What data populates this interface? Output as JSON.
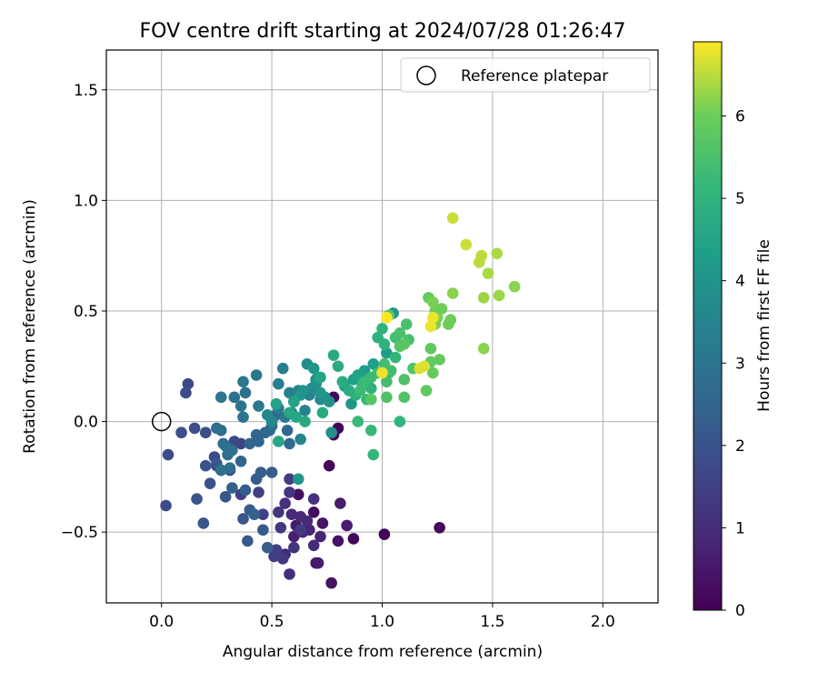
{
  "chart_data": {
    "type": "scatter",
    "title": "FOV centre drift starting at 2024/07/28 01:26:47",
    "xlabel": "Angular distance from reference (arcmin)",
    "ylabel": "Rotation from reference (arcmin)",
    "xlim": [
      -0.25,
      2.25
    ],
    "ylim": [
      -0.82,
      1.68
    ],
    "x_ticks": [
      0.0,
      0.5,
      1.0,
      1.5,
      2.0
    ],
    "x_tick_labels": [
      "0.0",
      "0.5",
      "1.0",
      "1.5",
      "2.0"
    ],
    "y_ticks": [
      -0.5,
      0.0,
      0.5,
      1.0,
      1.5
    ],
    "y_tick_labels": [
      "−0.5",
      "0.0",
      "0.5",
      "1.0",
      "1.5"
    ],
    "grid": true,
    "legend": {
      "position": "top-right",
      "entries": [
        "Reference platepar"
      ]
    },
    "reference_point": {
      "name": "Reference platepar",
      "x": 0.0,
      "y": 0.0
    },
    "colorbar": {
      "label": "Hours from first FF file",
      "colormap": "viridis",
      "range": [
        0,
        6.9
      ],
      "ticks": [
        0,
        1,
        2,
        3,
        4,
        5,
        6
      ],
      "tick_labels": [
        "0",
        "1",
        "2",
        "3",
        "4",
        "5",
        "6"
      ]
    },
    "points": [
      {
        "x": 0.8,
        "y": -0.03,
        "c": 0.1
      },
      {
        "x": 0.76,
        "y": -0.2,
        "c": 0.1
      },
      {
        "x": 0.87,
        "y": -0.53,
        "c": 0.1
      },
      {
        "x": 1.01,
        "y": -0.51,
        "c": 0.1
      },
      {
        "x": 1.26,
        "y": -0.48,
        "c": 0.1
      },
      {
        "x": 0.78,
        "y": 0.11,
        "c": 0.15
      },
      {
        "x": 0.78,
        "y": -0.06,
        "c": 0.15
      },
      {
        "x": 0.62,
        "y": -0.33,
        "c": 0.3
      },
      {
        "x": 0.69,
        "y": -0.41,
        "c": 0.3
      },
      {
        "x": 0.73,
        "y": -0.46,
        "c": 0.4
      },
      {
        "x": 0.8,
        "y": -0.54,
        "c": 0.4
      },
      {
        "x": 0.77,
        "y": -0.73,
        "c": 0.4
      },
      {
        "x": 0.7,
        "y": -0.64,
        "c": 0.5
      },
      {
        "x": 0.61,
        "y": -0.47,
        "c": 0.5
      },
      {
        "x": 0.81,
        "y": -0.37,
        "c": 0.6
      },
      {
        "x": 0.84,
        "y": -0.47,
        "c": 0.6
      },
      {
        "x": 0.71,
        "y": -0.64,
        "c": 0.6
      },
      {
        "x": 0.6,
        "y": -0.52,
        "c": 0.7
      },
      {
        "x": 0.67,
        "y": -0.49,
        "c": 0.8
      },
      {
        "x": 0.72,
        "y": -0.52,
        "c": 0.8
      },
      {
        "x": 0.64,
        "y": -0.5,
        "c": 0.8
      },
      {
        "x": 0.59,
        "y": -0.42,
        "c": 0.9
      },
      {
        "x": 0.63,
        "y": -0.43,
        "c": 0.9
      },
      {
        "x": 0.66,
        "y": -0.45,
        "c": 0.9
      },
      {
        "x": 0.69,
        "y": -0.56,
        "c": 1.0
      },
      {
        "x": 0.58,
        "y": -0.69,
        "c": 1.0
      },
      {
        "x": 0.56,
        "y": -0.6,
        "c": 1.0
      },
      {
        "x": 0.69,
        "y": -0.35,
        "c": 1.1
      },
      {
        "x": 0.56,
        "y": -0.37,
        "c": 1.1
      },
      {
        "x": 0.53,
        "y": -0.41,
        "c": 1.2
      },
      {
        "x": 0.58,
        "y": -0.32,
        "c": 1.2
      },
      {
        "x": 0.6,
        "y": -0.57,
        "c": 1.2
      },
      {
        "x": 0.63,
        "y": -0.49,
        "c": 1.3
      },
      {
        "x": 0.55,
        "y": -0.62,
        "c": 1.3
      },
      {
        "x": 0.54,
        "y": -0.48,
        "c": 1.3
      },
      {
        "x": 0.52,
        "y": -0.58,
        "c": 1.4
      },
      {
        "x": 0.51,
        "y": -0.61,
        "c": 1.4
      },
      {
        "x": 0.58,
        "y": -0.26,
        "c": 1.4
      },
      {
        "x": 0.46,
        "y": -0.42,
        "c": 1.5
      },
      {
        "x": 0.44,
        "y": -0.32,
        "c": 1.5
      },
      {
        "x": 0.36,
        "y": -0.33,
        "c": 1.5
      },
      {
        "x": 0.25,
        "y": -0.2,
        "c": 1.6
      },
      {
        "x": 0.31,
        "y": -0.22,
        "c": 1.6
      },
      {
        "x": 0.36,
        "y": -0.1,
        "c": 1.6
      },
      {
        "x": 0.33,
        "y": -0.09,
        "c": 1.7
      },
      {
        "x": 0.24,
        "y": -0.16,
        "c": 1.7
      },
      {
        "x": 0.12,
        "y": 0.17,
        "c": 1.7
      },
      {
        "x": 0.11,
        "y": 0.13,
        "c": 1.8
      },
      {
        "x": 0.03,
        "y": -0.15,
        "c": 1.8
      },
      {
        "x": 0.02,
        "y": -0.38,
        "c": 1.8
      },
      {
        "x": 0.09,
        "y": -0.05,
        "c": 1.9
      },
      {
        "x": 0.15,
        "y": -0.03,
        "c": 1.9
      },
      {
        "x": 0.2,
        "y": -0.05,
        "c": 1.9
      },
      {
        "x": 0.22,
        "y": -0.28,
        "c": 2.0
      },
      {
        "x": 0.16,
        "y": -0.35,
        "c": 2.0
      },
      {
        "x": 0.2,
        "y": -0.2,
        "c": 2.0
      },
      {
        "x": 0.25,
        "y": -0.19,
        "c": 2.1
      },
      {
        "x": 0.29,
        "y": -0.34,
        "c": 2.1
      },
      {
        "x": 0.19,
        "y": -0.46,
        "c": 2.1
      },
      {
        "x": 0.37,
        "y": -0.44,
        "c": 2.1
      },
      {
        "x": 0.39,
        "y": -0.54,
        "c": 2.2
      },
      {
        "x": 0.4,
        "y": -0.4,
        "c": 2.2
      },
      {
        "x": 0.43,
        "y": -0.26,
        "c": 2.2
      },
      {
        "x": 0.46,
        "y": -0.49,
        "c": 2.2
      },
      {
        "x": 0.48,
        "y": -0.57,
        "c": 2.3
      },
      {
        "x": 0.38,
        "y": -0.31,
        "c": 2.3
      },
      {
        "x": 0.45,
        "y": -0.23,
        "c": 2.3
      },
      {
        "x": 0.5,
        "y": -0.23,
        "c": 2.3
      },
      {
        "x": 0.42,
        "y": -0.42,
        "c": 2.4
      },
      {
        "x": 0.32,
        "y": -0.3,
        "c": 2.4
      },
      {
        "x": 0.27,
        "y": -0.22,
        "c": 2.4
      },
      {
        "x": 0.36,
        "y": -0.18,
        "c": 2.5
      },
      {
        "x": 0.4,
        "y": -0.1,
        "c": 2.5
      },
      {
        "x": 0.43,
        "y": -0.06,
        "c": 2.5
      },
      {
        "x": 0.44,
        "y": -0.09,
        "c": 2.5
      },
      {
        "x": 0.49,
        "y": -0.04,
        "c": 2.6
      },
      {
        "x": 0.52,
        "y": 0.03,
        "c": 2.6
      },
      {
        "x": 0.57,
        "y": -0.04,
        "c": 2.6
      },
      {
        "x": 0.47,
        "y": -0.05,
        "c": 2.6
      },
      {
        "x": 0.5,
        "y": -0.02,
        "c": 2.7
      },
      {
        "x": 0.58,
        "y": -0.1,
        "c": 2.7
      },
      {
        "x": 0.29,
        "y": -0.11,
        "c": 2.7
      },
      {
        "x": 0.27,
        "y": -0.04,
        "c": 2.8
      },
      {
        "x": 0.25,
        "y": -0.03,
        "c": 2.8
      },
      {
        "x": 0.28,
        "y": -0.1,
        "c": 2.8
      },
      {
        "x": 0.3,
        "y": -0.15,
        "c": 2.8
      },
      {
        "x": 0.31,
        "y": -0.21,
        "c": 2.9
      },
      {
        "x": 0.27,
        "y": -0.22,
        "c": 2.9
      },
      {
        "x": 0.32,
        "y": -0.13,
        "c": 2.9
      },
      {
        "x": 0.33,
        "y": 0.11,
        "c": 2.9
      },
      {
        "x": 0.36,
        "y": 0.07,
        "c": 3.0
      },
      {
        "x": 0.37,
        "y": 0.02,
        "c": 3.0
      },
      {
        "x": 0.38,
        "y": 0.13,
        "c": 3.0
      },
      {
        "x": 0.27,
        "y": 0.11,
        "c": 3.1
      },
      {
        "x": 0.37,
        "y": 0.18,
        "c": 3.1
      },
      {
        "x": 0.43,
        "y": 0.21,
        "c": 3.1
      },
      {
        "x": 0.44,
        "y": 0.07,
        "c": 3.2
      },
      {
        "x": 0.53,
        "y": 0.06,
        "c": 3.2
      },
      {
        "x": 0.56,
        "y": 0.02,
        "c": 3.2
      },
      {
        "x": 0.59,
        "y": 0.04,
        "c": 3.3
      },
      {
        "x": 0.55,
        "y": 0.24,
        "c": 3.3
      },
      {
        "x": 0.53,
        "y": 0.17,
        "c": 3.3
      },
      {
        "x": 0.58,
        "y": 0.13,
        "c": 3.4
      },
      {
        "x": 0.62,
        "y": 0.14,
        "c": 3.4
      },
      {
        "x": 0.67,
        "y": 0.12,
        "c": 3.5
      },
      {
        "x": 0.65,
        "y": 0.05,
        "c": 3.5
      },
      {
        "x": 0.63,
        "y": -0.08,
        "c": 3.5
      },
      {
        "x": 0.5,
        "y": 0.0,
        "c": 3.6
      },
      {
        "x": 0.48,
        "y": 0.03,
        "c": 3.6
      },
      {
        "x": 0.6,
        "y": 0.09,
        "c": 3.6
      },
      {
        "x": 0.68,
        "y": 0.15,
        "c": 3.7
      },
      {
        "x": 0.7,
        "y": 0.19,
        "c": 3.7
      },
      {
        "x": 0.72,
        "y": 0.1,
        "c": 3.7
      },
      {
        "x": 0.74,
        "y": 0.11,
        "c": 3.8
      },
      {
        "x": 0.66,
        "y": 0.26,
        "c": 3.8
      },
      {
        "x": 0.7,
        "y": 0.17,
        "c": 3.9
      },
      {
        "x": 0.76,
        "y": 0.09,
        "c": 3.9
      },
      {
        "x": 0.77,
        "y": -0.05,
        "c": 3.9
      },
      {
        "x": 0.62,
        "y": -0.26,
        "c": 4.0
      },
      {
        "x": 0.63,
        "y": 0.12,
        "c": 4.0
      },
      {
        "x": 0.64,
        "y": 0.14,
        "c": 4.0
      },
      {
        "x": 0.69,
        "y": 0.24,
        "c": 4.1
      },
      {
        "x": 0.71,
        "y": 0.2,
        "c": 4.1
      },
      {
        "x": 0.72,
        "y": 0.13,
        "c": 4.1
      },
      {
        "x": 0.86,
        "y": 0.08,
        "c": 4.1
      },
      {
        "x": 1.05,
        "y": 0.49,
        "c": 4.2
      },
      {
        "x": 1.02,
        "y": 0.31,
        "c": 4.3
      },
      {
        "x": 0.96,
        "y": 0.26,
        "c": 4.3
      },
      {
        "x": 0.92,
        "y": 0.23,
        "c": 4.3
      },
      {
        "x": 0.87,
        "y": 0.19,
        "c": 4.4
      },
      {
        "x": 0.89,
        "y": 0.21,
        "c": 4.4
      },
      {
        "x": 0.83,
        "y": 0.16,
        "c": 4.4
      },
      {
        "x": 0.72,
        "y": 0.2,
        "c": 4.5
      },
      {
        "x": 0.6,
        "y": 0.09,
        "c": 4.5
      },
      {
        "x": 0.52,
        "y": 0.08,
        "c": 4.5
      },
      {
        "x": 0.58,
        "y": 0.04,
        "c": 4.6
      },
      {
        "x": 0.53,
        "y": -0.09,
        "c": 4.6
      },
      {
        "x": 0.61,
        "y": 0.02,
        "c": 4.6
      },
      {
        "x": 0.65,
        "y": 0.0,
        "c": 4.7
      },
      {
        "x": 0.73,
        "y": 0.04,
        "c": 4.7
      },
      {
        "x": 0.78,
        "y": 0.3,
        "c": 4.7
      },
      {
        "x": 0.8,
        "y": 0.25,
        "c": 4.8
      },
      {
        "x": 0.82,
        "y": 0.18,
        "c": 4.8
      },
      {
        "x": 0.85,
        "y": 0.14,
        "c": 4.8
      },
      {
        "x": 0.88,
        "y": 0.12,
        "c": 4.9
      },
      {
        "x": 0.91,
        "y": 0.17,
        "c": 4.9
      },
      {
        "x": 0.95,
        "y": 0.15,
        "c": 5.0
      },
      {
        "x": 0.98,
        "y": 0.38,
        "c": 5.0
      },
      {
        "x": 1.0,
        "y": 0.42,
        "c": 5.0
      },
      {
        "x": 1.01,
        "y": 0.35,
        "c": 5.0
      },
      {
        "x": 1.03,
        "y": 0.22,
        "c": 5.1
      },
      {
        "x": 1.06,
        "y": 0.29,
        "c": 5.1
      },
      {
        "x": 1.08,
        "y": 0.0,
        "c": 5.1
      },
      {
        "x": 0.96,
        "y": -0.15,
        "c": 5.1
      },
      {
        "x": 0.95,
        "y": -0.04,
        "c": 5.2
      },
      {
        "x": 0.89,
        "y": -0.0,
        "c": 5.2
      },
      {
        "x": 0.93,
        "y": 0.1,
        "c": 5.2
      },
      {
        "x": 0.9,
        "y": 0.14,
        "c": 5.3
      },
      {
        "x": 0.92,
        "y": 0.18,
        "c": 5.3
      },
      {
        "x": 0.95,
        "y": 0.2,
        "c": 5.3
      },
      {
        "x": 0.98,
        "y": 0.22,
        "c": 5.3
      },
      {
        "x": 1.01,
        "y": 0.26,
        "c": 5.4
      },
      {
        "x": 1.02,
        "y": 0.18,
        "c": 5.4
      },
      {
        "x": 1.04,
        "y": 0.23,
        "c": 5.4
      },
      {
        "x": 1.06,
        "y": 0.38,
        "c": 5.4
      },
      {
        "x": 1.08,
        "y": 0.4,
        "c": 5.5
      },
      {
        "x": 1.11,
        "y": 0.44,
        "c": 5.5
      },
      {
        "x": 1.12,
        "y": 0.37,
        "c": 5.5
      },
      {
        "x": 1.1,
        "y": 0.19,
        "c": 5.6
      },
      {
        "x": 1.1,
        "y": 0.11,
        "c": 5.6
      },
      {
        "x": 1.14,
        "y": 0.24,
        "c": 5.6
      },
      {
        "x": 1.02,
        "y": 0.11,
        "c": 5.6
      },
      {
        "x": 0.95,
        "y": 0.1,
        "c": 5.7
      },
      {
        "x": 1.03,
        "y": 0.48,
        "c": 5.7
      },
      {
        "x": 1.08,
        "y": 0.34,
        "c": 5.7
      },
      {
        "x": 1.1,
        "y": 0.35,
        "c": 5.7
      },
      {
        "x": 1.22,
        "y": 0.27,
        "c": 5.8
      },
      {
        "x": 1.2,
        "y": 0.14,
        "c": 5.8
      },
      {
        "x": 1.22,
        "y": 0.33,
        "c": 5.8
      },
      {
        "x": 1.23,
        "y": 0.22,
        "c": 5.9
      },
      {
        "x": 1.26,
        "y": 0.28,
        "c": 5.9
      },
      {
        "x": 1.21,
        "y": 0.56,
        "c": 5.9
      },
      {
        "x": 1.24,
        "y": 0.5,
        "c": 6.0
      },
      {
        "x": 1.27,
        "y": 0.51,
        "c": 6.0
      },
      {
        "x": 1.3,
        "y": 0.44,
        "c": 6.0
      },
      {
        "x": 1.31,
        "y": 0.46,
        "c": 6.0
      },
      {
        "x": 1.24,
        "y": 0.44,
        "c": 6.1
      },
      {
        "x": 1.25,
        "y": 0.47,
        "c": 6.1
      },
      {
        "x": 1.23,
        "y": 0.54,
        "c": 6.1
      },
      {
        "x": 1.32,
        "y": 0.58,
        "c": 6.2
      },
      {
        "x": 1.46,
        "y": 0.33,
        "c": 6.2
      },
      {
        "x": 1.6,
        "y": 0.61,
        "c": 6.2
      },
      {
        "x": 1.46,
        "y": 0.56,
        "c": 6.3
      },
      {
        "x": 1.53,
        "y": 0.57,
        "c": 6.3
      },
      {
        "x": 1.52,
        "y": 0.76,
        "c": 6.4
      },
      {
        "x": 1.48,
        "y": 0.67,
        "c": 6.4
      },
      {
        "x": 1.44,
        "y": 0.72,
        "c": 6.5
      },
      {
        "x": 1.45,
        "y": 0.75,
        "c": 6.5
      },
      {
        "x": 1.38,
        "y": 0.8,
        "c": 6.6
      },
      {
        "x": 1.32,
        "y": 0.92,
        "c": 6.6
      },
      {
        "x": 1.17,
        "y": 0.24,
        "c": 6.7
      },
      {
        "x": 1.19,
        "y": 0.25,
        "c": 6.7
      },
      {
        "x": 1.23,
        "y": 0.47,
        "c": 6.8
      },
      {
        "x": 1.22,
        "y": 0.43,
        "c": 6.8
      },
      {
        "x": 1.0,
        "y": 0.22,
        "c": 6.8
      },
      {
        "x": 1.02,
        "y": 0.47,
        "c": 6.9
      }
    ]
  }
}
